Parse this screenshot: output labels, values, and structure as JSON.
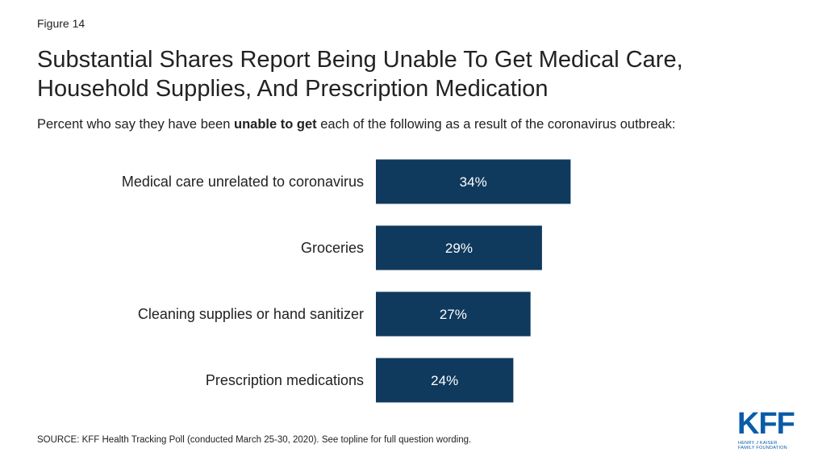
{
  "figure_label": "Figure 14",
  "title_line1": "Substantial Shares Report Being Unable To Get Medical Care,",
  "title_line2": "Household Supplies, And Prescription Medication",
  "subtitle_pre": "Percent who say they have been ",
  "subtitle_bold": "unable to get",
  "subtitle_post": " each of the following as a result of the coronavirus outbreak:",
  "source": "SOURCE: KFF Health Tracking Poll (conducted March 25-30, 2020). See topline for full question wording.",
  "logo": {
    "text": "KFF",
    "line1": "HENRY J KAISER",
    "line2": "FAMILY FOUNDATION"
  },
  "colors": {
    "bar": "#0f3a5e",
    "bar_label": "#ffffff",
    "logo": "#0a5ca8"
  },
  "chart_data": {
    "type": "bar",
    "orientation": "horizontal",
    "categories": [
      "Medical care unrelated to coronavirus",
      "Groceries",
      "Cleaning supplies or hand sanitizer",
      "Prescription medications"
    ],
    "values": [
      34,
      29,
      27,
      24
    ],
    "labels": [
      "34%",
      "29%",
      "27%",
      "24%"
    ],
    "unit": "%",
    "title": "",
    "xlabel": "",
    "ylabel": "",
    "grid": false,
    "legend": "none"
  }
}
